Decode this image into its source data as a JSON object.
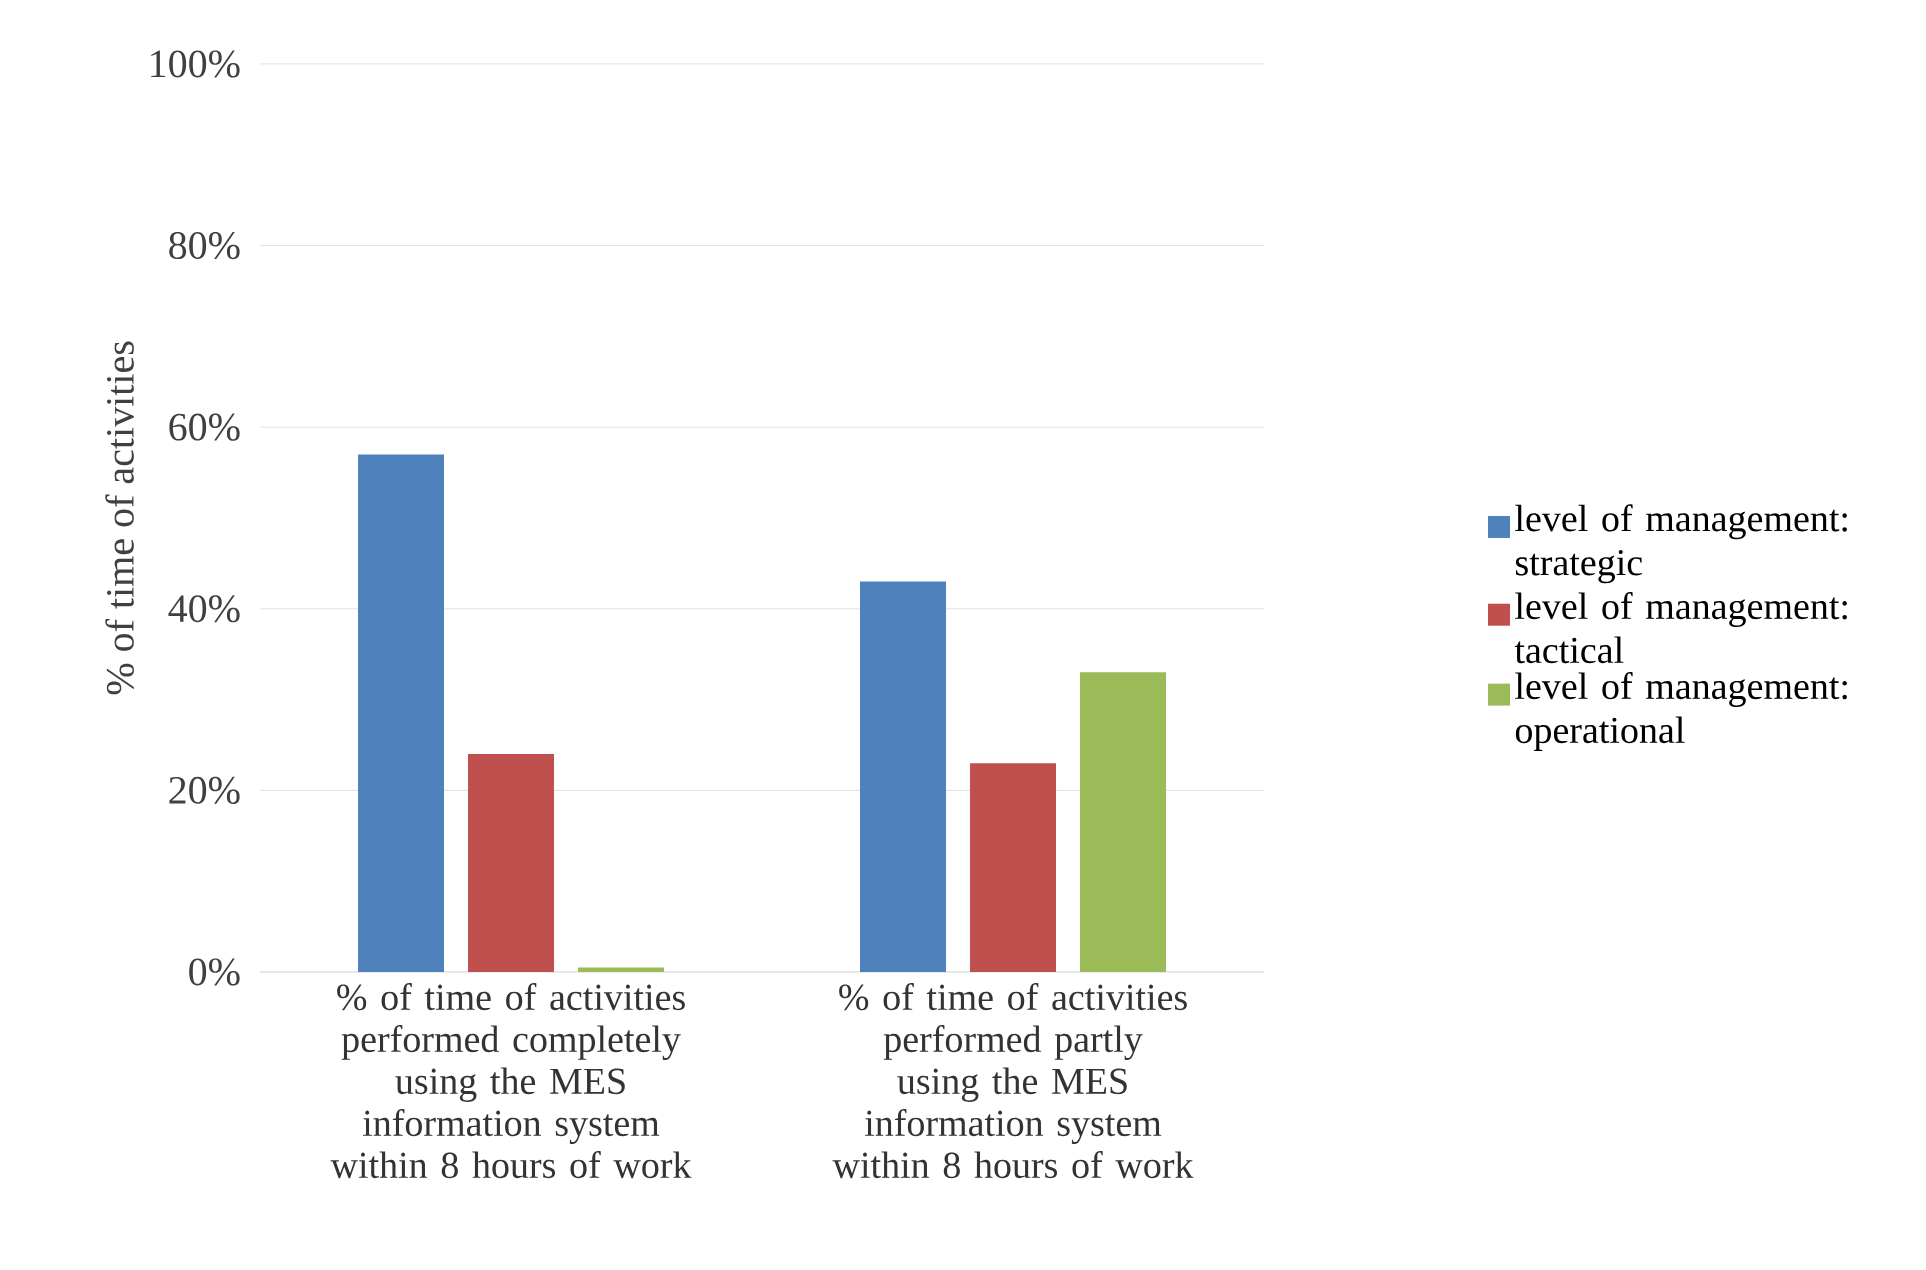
{
  "chart_data": {
    "type": "bar",
    "ylabel": "% of time of activities",
    "categories": [
      "% of time of activities performed completely using the MES information system within 8 hours of work",
      "% of  time of activities performed partly using the MES information system within 8 hours of work"
    ],
    "series": [
      {
        "name": "level of management: strategic",
        "color": "#4f81bd",
        "values": [
          57,
          43
        ]
      },
      {
        "name": "level of management: tactical",
        "color": "#c0504d",
        "values": [
          24,
          23
        ]
      },
      {
        "name": "level of management: operational",
        "color": "#9bbb59",
        "values": [
          0.5,
          33
        ]
      }
    ],
    "ylim": [
      0,
      100
    ],
    "yticks": [
      {
        "value": 0,
        "label": "0%"
      },
      {
        "value": 20,
        "label": "20%"
      },
      {
        "value": 40,
        "label": "40%"
      },
      {
        "value": 60,
        "label": "60%"
      },
      {
        "value": 80,
        "label": "80%"
      },
      {
        "value": 100,
        "label": "100%"
      }
    ],
    "grid": "y",
    "legend": "right"
  }
}
